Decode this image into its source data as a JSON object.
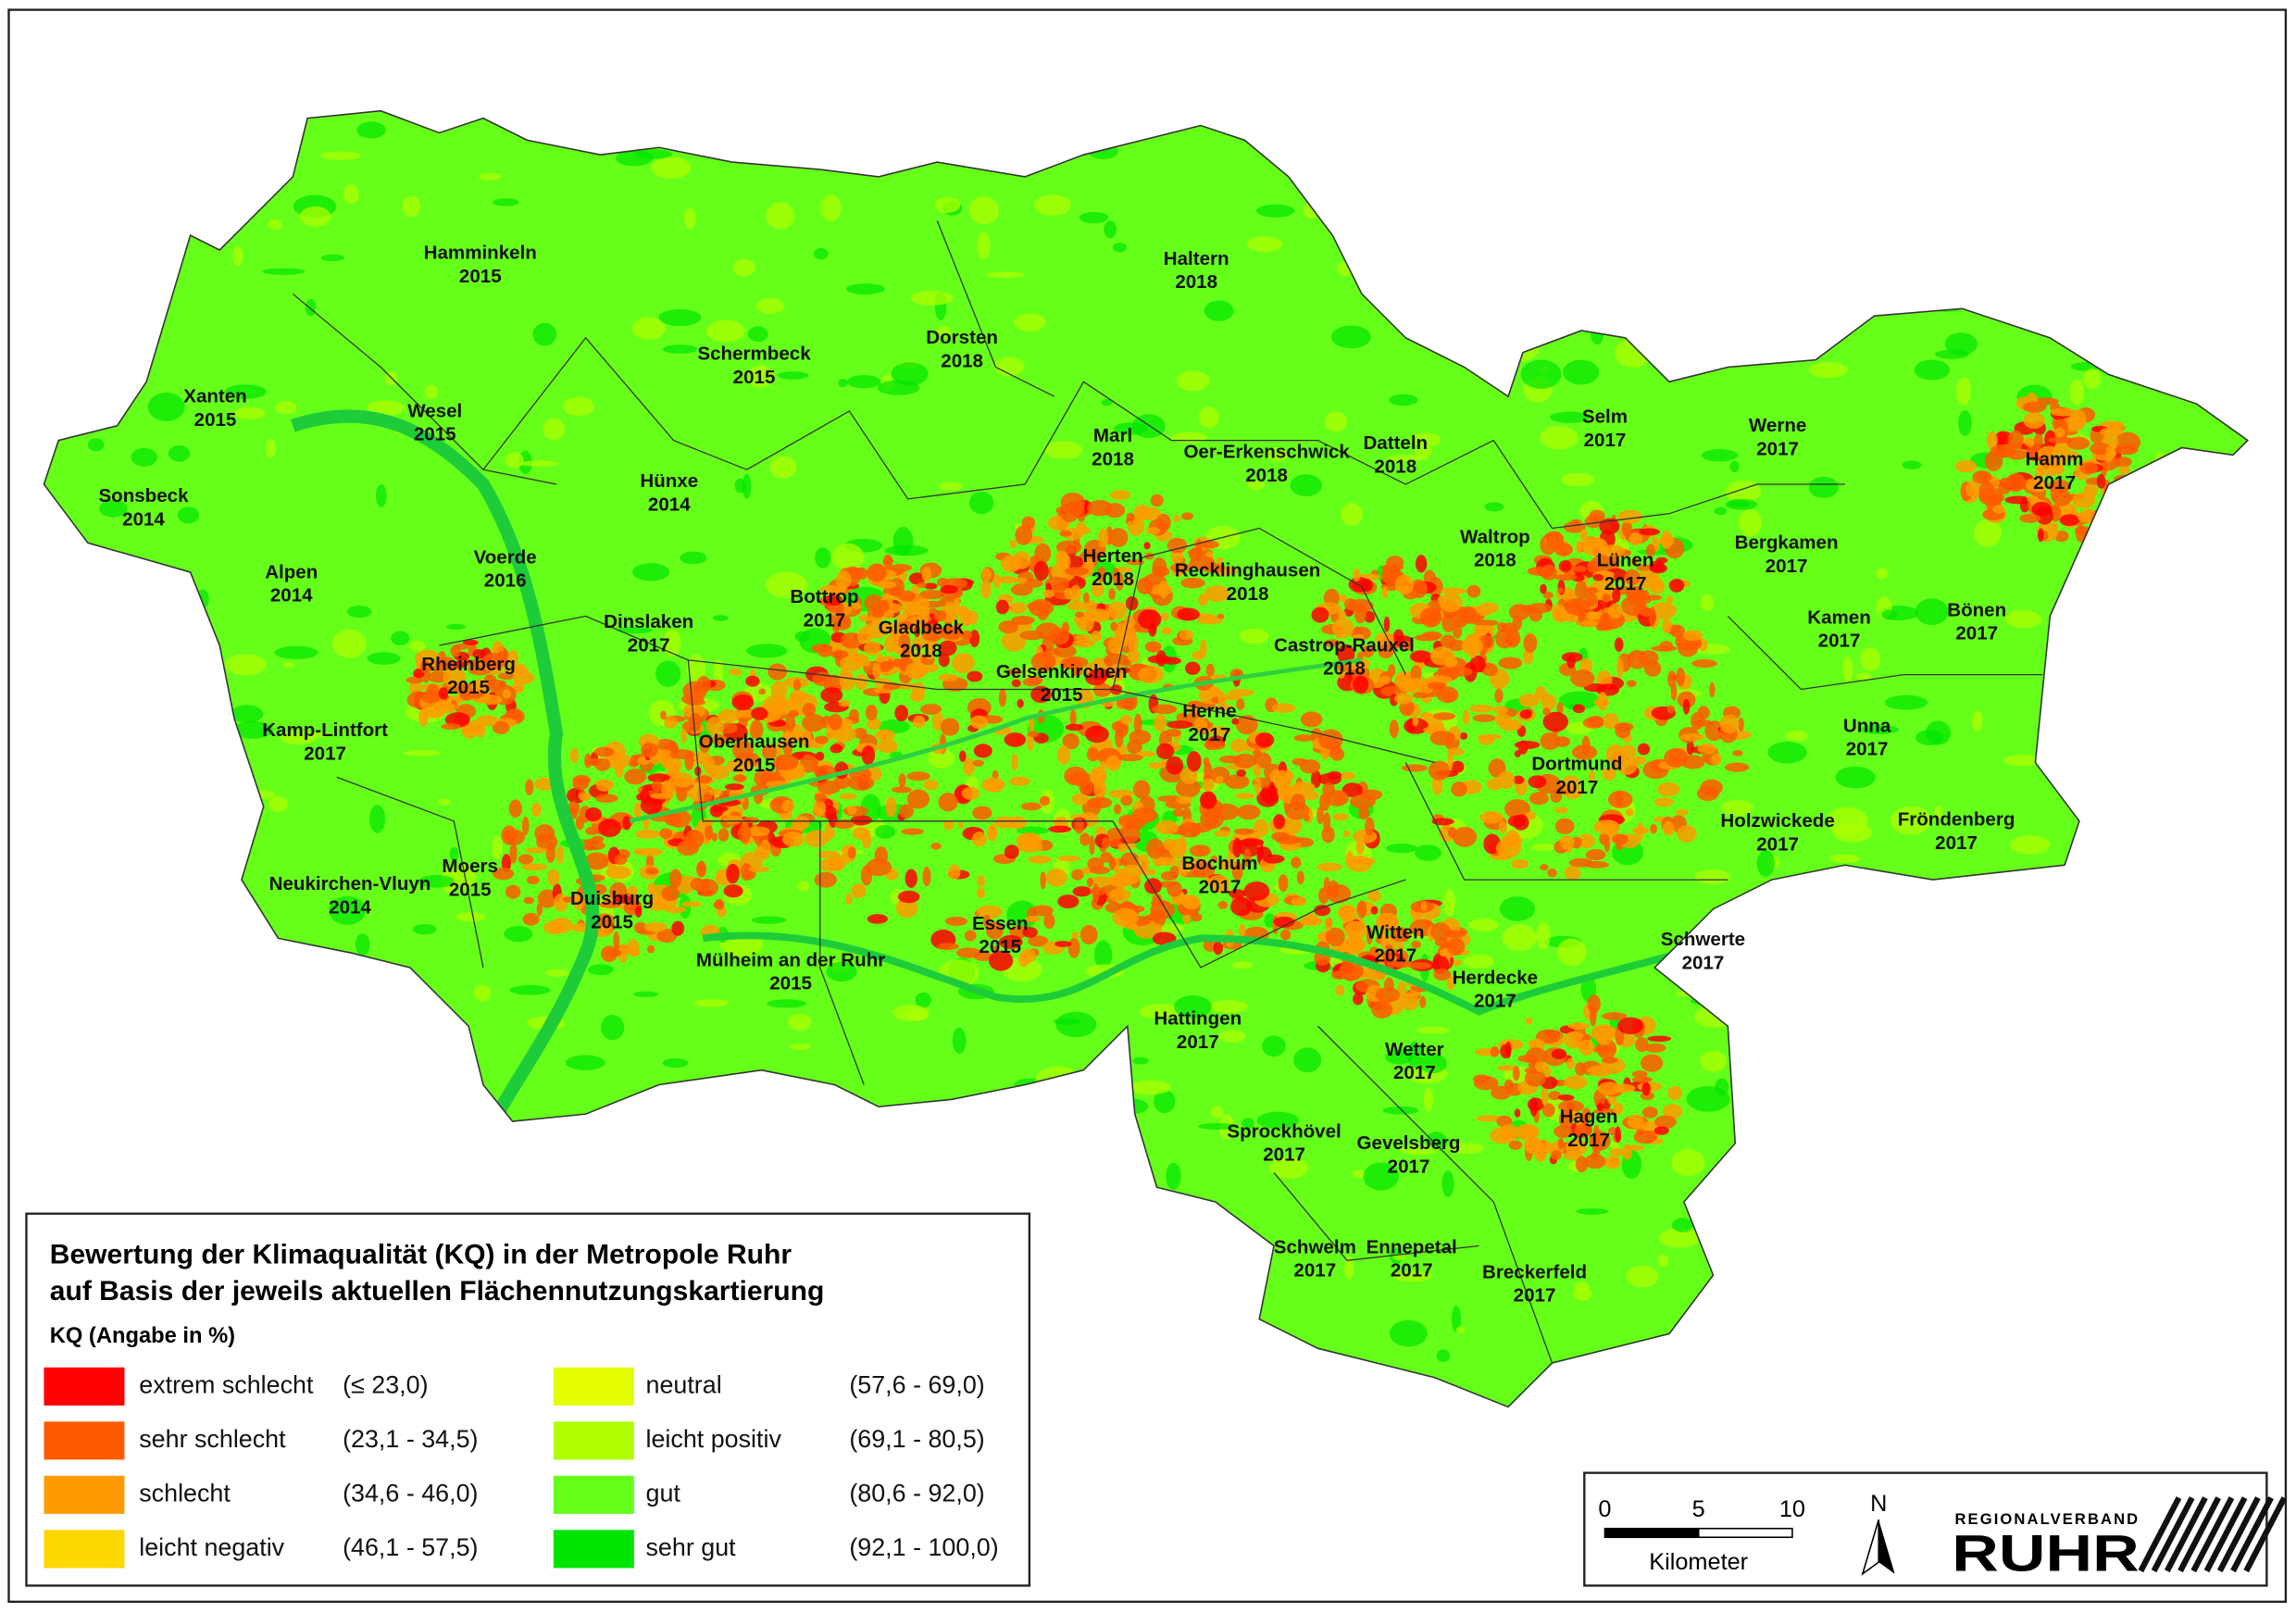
{
  "legend": {
    "title_lines": [
      "Bewertung der Klimaqualität (KQ) in der Metropole Ruhr",
      "auf Basis der jeweils aktuellen Flächennutzungskartierung"
    ],
    "subtitle": "KQ (Angabe in %)",
    "classes": [
      {
        "name": "extrem schlecht",
        "range": "(≤ 23,0)",
        "color": "#ff0000"
      },
      {
        "name": "sehr schlecht",
        "range": "(23,1 - 34,5)",
        "color": "#ff5a00"
      },
      {
        "name": "schlecht",
        "range": "(34,6 - 46,0)",
        "color": "#ff9a00"
      },
      {
        "name": "leicht negativ",
        "range": "(46,1 - 57,5)",
        "color": "#ffd800"
      },
      {
        "name": "neutral",
        "range": "(57,6 - 69,0)",
        "color": "#e6ff00"
      },
      {
        "name": "leicht positiv",
        "range": "(69,1 - 80,5)",
        "color": "#b0ff00"
      },
      {
        "name": "gut",
        "range": "(80,6 - 92,0)",
        "color": "#66ff1a"
      },
      {
        "name": "sehr gut",
        "range": "(92,1 - 100,0)",
        "color": "#00e600"
      }
    ]
  },
  "scale": {
    "labels": [
      "0",
      "5",
      "10"
    ],
    "unit": "Kilometer"
  },
  "north": "N",
  "logo": {
    "top": "REGIONALVERBAND",
    "main": "RUHR"
  },
  "cities": [
    {
      "name": "Hamminkeln",
      "year": "2015"
    },
    {
      "name": "Xanten",
      "year": "2015"
    },
    {
      "name": "Wesel",
      "year": "2015"
    },
    {
      "name": "Schermbeck",
      "year": "2015"
    },
    {
      "name": "Dorsten",
      "year": "2018"
    },
    {
      "name": "Haltern",
      "year": "2018"
    },
    {
      "name": "Sonsbeck",
      "year": "2014"
    },
    {
      "name": "Hünxe",
      "year": "2014"
    },
    {
      "name": "Marl",
      "year": "2018"
    },
    {
      "name": "Oer-Erkenschwick",
      "year": "2018"
    },
    {
      "name": "Datteln",
      "year": "2018"
    },
    {
      "name": "Selm",
      "year": "2017"
    },
    {
      "name": "Werne",
      "year": "2017"
    },
    {
      "name": "Hamm",
      "year": "2017"
    },
    {
      "name": "Alpen",
      "year": "2014"
    },
    {
      "name": "Voerde",
      "year": "2016"
    },
    {
      "name": "Herten",
      "year": "2018"
    },
    {
      "name": "Recklinghausen",
      "year": "2018"
    },
    {
      "name": "Waltrop",
      "year": "2018"
    },
    {
      "name": "Lünen",
      "year": "2017"
    },
    {
      "name": "Bergkamen",
      "year": "2017"
    },
    {
      "name": "Dinslaken",
      "year": "2017"
    },
    {
      "name": "Bottrop",
      "year": "2017"
    },
    {
      "name": "Gladbeck",
      "year": "2018"
    },
    {
      "name": "Castrop-Rauxel",
      "year": "2018"
    },
    {
      "name": "Kamen",
      "year": "2017"
    },
    {
      "name": "Bönen",
      "year": "2017"
    },
    {
      "name": "Rheinberg",
      "year": "2015"
    },
    {
      "name": "Gelsenkirchen",
      "year": "2015"
    },
    {
      "name": "Herne",
      "year": "2017"
    },
    {
      "name": "Unna",
      "year": "2017"
    },
    {
      "name": "Kamp-Lintfort",
      "year": "2017"
    },
    {
      "name": "Oberhausen",
      "year": "2015"
    },
    {
      "name": "Dortmund",
      "year": "2017"
    },
    {
      "name": "Holzwickede",
      "year": "2017"
    },
    {
      "name": "Fröndenberg",
      "year": "2017"
    },
    {
      "name": "Moers",
      "year": "2015"
    },
    {
      "name": "Bochum",
      "year": "2017"
    },
    {
      "name": "Neukirchen-Vluyn",
      "year": "2014"
    },
    {
      "name": "Duisburg",
      "year": "2015"
    },
    {
      "name": "Essen",
      "year": "2015"
    },
    {
      "name": "Witten",
      "year": "2017"
    },
    {
      "name": "Schwerte",
      "year": "2017"
    },
    {
      "name": "Mülheim an der Ruhr",
      "year": "2015"
    },
    {
      "name": "Herdecke",
      "year": "2017"
    },
    {
      "name": "Hattingen",
      "year": "2017"
    },
    {
      "name": "Wetter",
      "year": "2017"
    },
    {
      "name": "Hagen",
      "year": "2017"
    },
    {
      "name": "Sprockhövel",
      "year": "2017"
    },
    {
      "name": "Gevelsberg",
      "year": "2017"
    },
    {
      "name": "Schwelm",
      "year": "2017"
    },
    {
      "name": "Ennepetal",
      "year": "2017"
    },
    {
      "name": "Breckerfeld",
      "year": "2017"
    }
  ]
}
